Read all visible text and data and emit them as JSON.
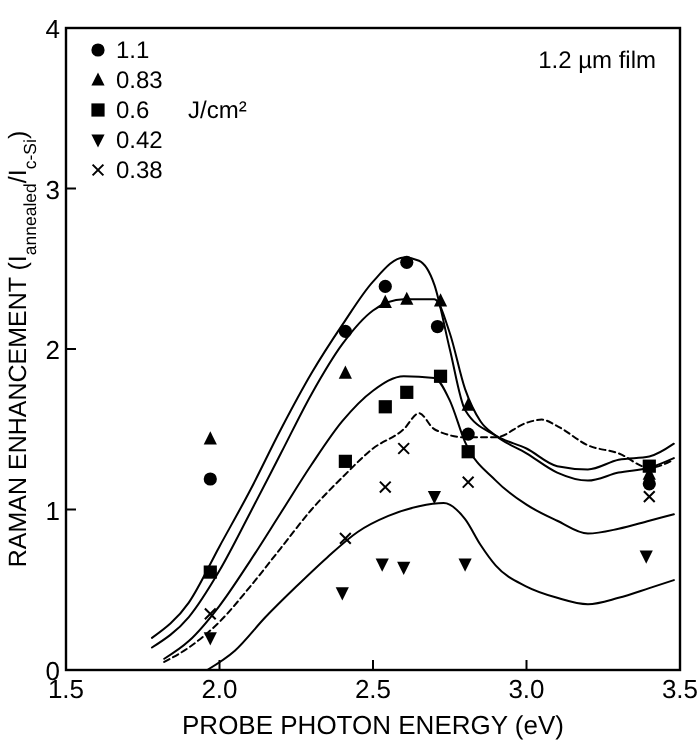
{
  "chart_data": {
    "type": "scatter",
    "xlabel": "PROBE PHOTON ENERGY (eV)",
    "ylabel": "RAMAN ENHANCEMENT (I$_{annealed}$/I$_{c-Si}$)",
    "xlim": [
      1.5,
      3.5
    ],
    "ylim": [
      0,
      4
    ],
    "xticks": [
      1.5,
      {
        "value": 2,
        "label": "2.0"
      },
      2.5,
      {
        "value": 3,
        "label": "3.0"
      },
      3.5
    ],
    "yticks": [
      0,
      1,
      2,
      3,
      4
    ],
    "legend": "top left",
    "grid": false,
    "annotations": [
      "1.2 µm film",
      "J/cm²"
    ],
    "series": [
      {
        "name": "1.1",
        "marker": "circle",
        "color": "#000000",
        "x": [
          1.97,
          2.41,
          2.54,
          2.61,
          2.71,
          2.81,
          3.4
        ],
        "values": [
          1.19,
          2.11,
          2.39,
          2.54,
          2.14,
          1.47,
          1.16
        ]
      },
      {
        "name": "0.83",
        "marker": "triangle",
        "color": "#000000",
        "x": [
          1.97,
          2.41,
          2.54,
          2.61,
          2.72,
          2.81,
          3.4
        ],
        "values": [
          1.44,
          1.85,
          2.29,
          2.31,
          2.3,
          1.65,
          1.22
        ]
      },
      {
        "name": "0.6",
        "marker": "square",
        "color": "#000000",
        "x": [
          1.97,
          2.41,
          2.54,
          2.61,
          2.72,
          2.81,
          3.4
        ],
        "values": [
          0.61,
          1.3,
          1.64,
          1.73,
          1.83,
          1.36,
          1.27
        ]
      },
      {
        "name": "0.42",
        "marker": "triangle-down",
        "color": "#000000",
        "x": [
          1.97,
          2.4,
          2.53,
          2.6,
          2.7,
          2.8,
          3.39
        ],
        "values": [
          0.2,
          0.48,
          0.66,
          0.64,
          1.08,
          0.66,
          0.71
        ]
      },
      {
        "name": "0.38",
        "marker": "cross",
        "color": "#000000",
        "x": [
          1.97,
          2.41,
          2.54,
          2.6,
          2.81,
          3.4
        ],
        "values": [
          0.35,
          0.82,
          1.14,
          1.38,
          1.17,
          1.08
        ]
      },
      {
        "type": "line",
        "marker": "none",
        "line_style": "solid",
        "color": "#000000",
        "x": [
          1.78,
          1.9,
          2.0,
          2.1,
          2.2,
          2.3,
          2.4,
          2.5,
          2.6,
          2.65,
          2.7,
          2.75,
          2.8,
          2.9,
          3.0,
          3.1,
          3.2,
          3.3,
          3.4,
          3.48
        ],
        "values": [
          0.2,
          0.42,
          0.77,
          1.12,
          1.5,
          1.85,
          2.15,
          2.42,
          2.57,
          2.55,
          2.4,
          2.0,
          1.62,
          1.46,
          1.38,
          1.27,
          1.25,
          1.31,
          1.33,
          1.41
        ]
      },
      {
        "type": "line",
        "marker": "none",
        "line_style": "solid",
        "color": "#000000",
        "x": [
          1.78,
          1.9,
          2.0,
          2.1,
          2.2,
          2.3,
          2.4,
          2.5,
          2.6,
          2.7,
          2.75,
          2.8,
          2.85,
          2.9,
          3.0,
          3.1,
          3.2,
          3.3,
          3.4,
          3.48
        ],
        "values": [
          0.14,
          0.33,
          0.62,
          0.98,
          1.35,
          1.72,
          2.03,
          2.24,
          2.31,
          2.31,
          2.1,
          1.75,
          1.55,
          1.46,
          1.35,
          1.23,
          1.18,
          1.23,
          1.26,
          1.32
        ]
      },
      {
        "type": "line",
        "marker": "none",
        "line_style": "solid",
        "color": "#000000",
        "x": [
          1.82,
          1.9,
          2.0,
          2.1,
          2.2,
          2.3,
          2.4,
          2.5,
          2.6,
          2.7,
          2.75,
          2.8,
          2.9,
          3.0,
          3.1,
          3.2,
          3.3,
          3.4,
          3.48
        ],
        "values": [
          0.07,
          0.18,
          0.4,
          0.68,
          0.98,
          1.28,
          1.55,
          1.74,
          1.83,
          1.82,
          1.68,
          1.42,
          1.18,
          1.03,
          0.93,
          0.85,
          0.88,
          0.93,
          0.97
        ]
      },
      {
        "type": "line",
        "marker": "none",
        "line_style": "dashed",
        "color": "#000000",
        "x": [
          1.82,
          1.9,
          2.0,
          2.1,
          2.2,
          2.3,
          2.4,
          2.5,
          2.6,
          2.65,
          2.7,
          2.8,
          2.9,
          3.0,
          3.05,
          3.1,
          3.2,
          3.3,
          3.4,
          3.48
        ],
        "values": [
          0.05,
          0.14,
          0.3,
          0.52,
          0.76,
          1.0,
          1.2,
          1.38,
          1.5,
          1.6,
          1.5,
          1.45,
          1.45,
          1.54,
          1.56,
          1.52,
          1.4,
          1.35,
          1.26,
          1.31
        ]
      },
      {
        "type": "line",
        "marker": "none",
        "line_style": "solid",
        "color": "#000000",
        "x": [
          1.96,
          2.05,
          2.15,
          2.25,
          2.35,
          2.45,
          2.55,
          2.65,
          2.73,
          2.8,
          2.85,
          2.9,
          3.0,
          3.1,
          3.2,
          3.3,
          3.4,
          3.48
        ],
        "values": [
          0.0,
          0.12,
          0.33,
          0.52,
          0.7,
          0.86,
          0.96,
          1.02,
          1.04,
          0.94,
          0.78,
          0.65,
          0.52,
          0.45,
          0.41,
          0.45,
          0.51,
          0.56
        ]
      }
    ]
  }
}
